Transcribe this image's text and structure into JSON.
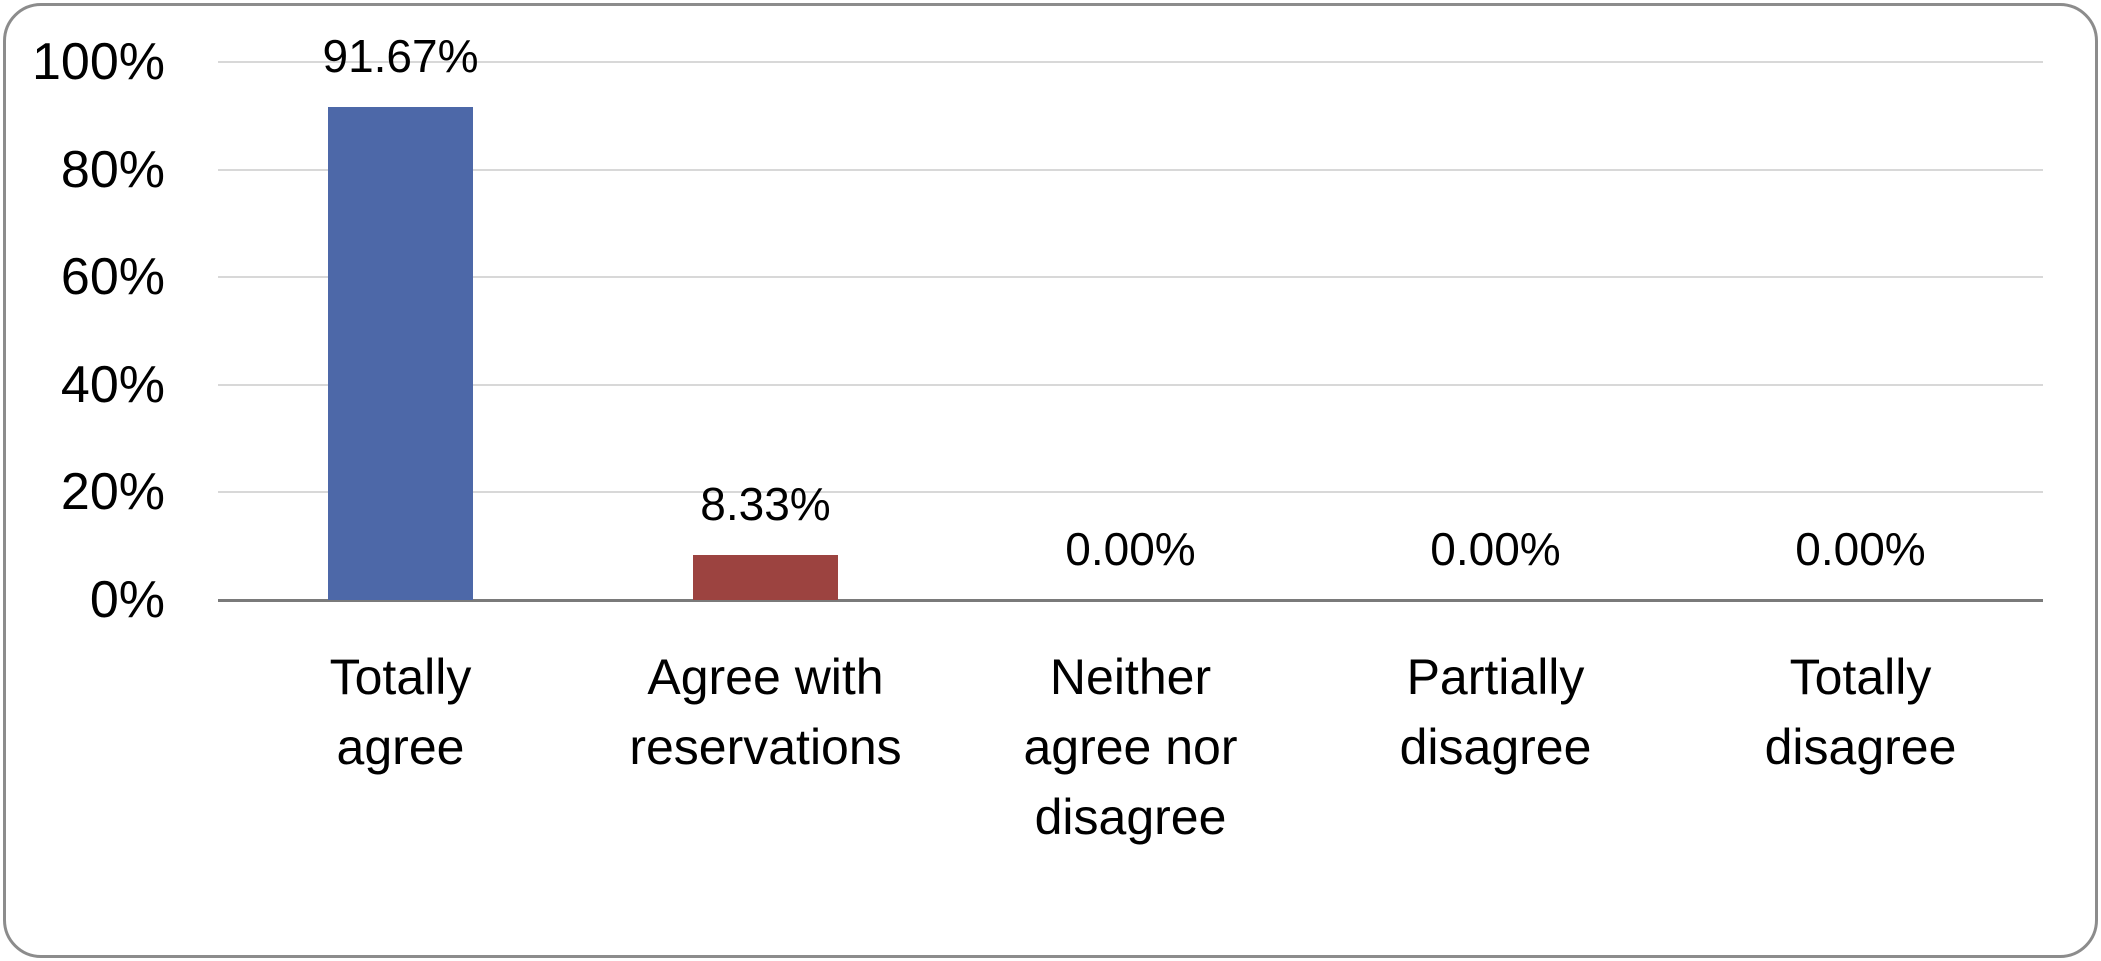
{
  "chart_data": {
    "type": "bar",
    "title": "",
    "xlabel": "",
    "ylabel": "",
    "categories": [
      "Totally agree",
      "Agree with reservations",
      "Neither agree nor disagree",
      "Partially disagree",
      "Totally disagree"
    ],
    "values": [
      91.67,
      8.33,
      0,
      0,
      0
    ],
    "data_labels": [
      "91.67%",
      "8.33%",
      "0.00%",
      "0.00%",
      "0.00%"
    ],
    "bar_colors": [
      "#4d68a8",
      "#9c4340",
      null,
      null,
      null
    ],
    "ylim": [
      0,
      100
    ],
    "y_ticks": [
      {
        "label": "100%",
        "value": 100
      },
      {
        "label": "80%",
        "value": 80
      },
      {
        "label": "60%",
        "value": 60
      },
      {
        "label": "40%",
        "value": 40
      },
      {
        "label": "20%",
        "value": 20
      },
      {
        "label": "0%",
        "value": 0
      }
    ],
    "grid": true,
    "legend": "none"
  },
  "x_axis": {
    "tick_lines": [
      [
        "Totally",
        "agree"
      ],
      [
        "Agree with",
        "reservations"
      ],
      [
        "Neither",
        "agree nor",
        "disagree"
      ],
      [
        "Partially",
        "disagree"
      ],
      [
        "Totally",
        "disagree"
      ]
    ]
  },
  "colors": {
    "bar_blue": "#4d68a8",
    "bar_red": "#9c4340",
    "gridline": "#d8d8d8",
    "axis_line": "#7a7a7a",
    "frame_border": "#8c8c8c",
    "text": "#000000",
    "background": "#ffffff"
  }
}
